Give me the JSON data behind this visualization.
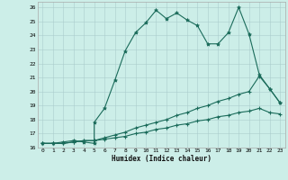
{
  "title": "",
  "xlabel": "Humidex (Indice chaleur)",
  "bg_color": "#cceee8",
  "line_color": "#1a6b5a",
  "grid_color": "#aacccc",
  "xlim": [
    -0.5,
    23.5
  ],
  "ylim": [
    16,
    26.4
  ],
  "xticks": [
    0,
    1,
    2,
    3,
    4,
    5,
    6,
    7,
    8,
    9,
    10,
    11,
    12,
    13,
    14,
    15,
    16,
    17,
    18,
    19,
    20,
    21,
    22,
    23
  ],
  "yticks": [
    16,
    17,
    18,
    19,
    20,
    21,
    22,
    23,
    24,
    25,
    26
  ],
  "line1_x": [
    0,
    1,
    2,
    3,
    4,
    5,
    5,
    6,
    7,
    8,
    9,
    10,
    11,
    12,
    13,
    14,
    15,
    16,
    17,
    18,
    19,
    20,
    21,
    22,
    23
  ],
  "line1_y": [
    16.3,
    16.3,
    16.4,
    16.5,
    16.4,
    16.3,
    17.8,
    18.8,
    20.8,
    22.9,
    24.2,
    24.9,
    25.8,
    25.2,
    25.6,
    25.1,
    24.7,
    23.4,
    23.4,
    24.2,
    26.0,
    24.1,
    21.2,
    20.2,
    19.2
  ],
  "line2_x": [
    0,
    1,
    2,
    3,
    4,
    5,
    6,
    7,
    8,
    9,
    10,
    11,
    12,
    13,
    14,
    15,
    16,
    17,
    18,
    19,
    20,
    21,
    22,
    23
  ],
  "line2_y": [
    16.3,
    16.3,
    16.3,
    16.4,
    16.5,
    16.5,
    16.7,
    16.9,
    17.1,
    17.4,
    17.6,
    17.8,
    18.0,
    18.3,
    18.5,
    18.8,
    19.0,
    19.3,
    19.5,
    19.8,
    20.0,
    21.1,
    20.2,
    19.2
  ],
  "line3_x": [
    0,
    1,
    2,
    3,
    4,
    5,
    6,
    7,
    8,
    9,
    10,
    11,
    12,
    13,
    14,
    15,
    16,
    17,
    18,
    19,
    20,
    21,
    22,
    23
  ],
  "line3_y": [
    16.3,
    16.3,
    16.3,
    16.4,
    16.5,
    16.5,
    16.6,
    16.7,
    16.8,
    17.0,
    17.1,
    17.3,
    17.4,
    17.6,
    17.7,
    17.9,
    18.0,
    18.2,
    18.3,
    18.5,
    18.6,
    18.8,
    18.5,
    18.4
  ]
}
